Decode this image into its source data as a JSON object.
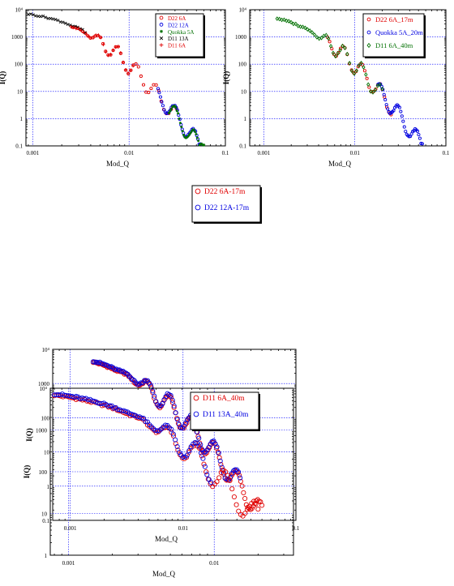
{
  "chart_data": [
    {
      "id": "c1",
      "type": "scatter",
      "xlabel": "Mod_Q",
      "ylabel": "I(Q)",
      "x_log": true,
      "y_log": true,
      "xlim": [
        0.00085,
        0.1
      ],
      "ylim": [
        0.1,
        10000
      ],
      "x_ticks": [
        {
          "v": 0.001,
          "t": "0.001"
        },
        {
          "v": 0.01,
          "t": "0.01"
        },
        {
          "v": 0.1,
          "t": "0.1"
        }
      ],
      "y_ticks": [
        {
          "v": 0.1,
          "t": "0.1"
        },
        {
          "v": 1,
          "t": "1"
        },
        {
          "v": 10,
          "t": "10"
        },
        {
          "v": 100,
          "t": "100"
        },
        {
          "v": 1000,
          "t": "1000"
        },
        {
          "v": 10000,
          "t": "10⁴"
        }
      ],
      "grid": true,
      "legend_position": "top-right",
      "series": [
        {
          "name": "D22 6A",
          "color": "#e00000",
          "marker": "circle",
          "q_range": [
            0.0026,
            0.031
          ],
          "n": 42
        },
        {
          "name": "D22 12A",
          "color": "#0000e0",
          "marker": "circle",
          "q_range": [
            0.02,
            0.055
          ],
          "n": 36
        },
        {
          "name": "Quokka 5A",
          "color": "#007000",
          "marker": "star",
          "q_range": [
            0.026,
            0.06
          ],
          "n": 32
        },
        {
          "name": "D11 13A",
          "color": "#000000",
          "marker": "cross",
          "q_range": [
            0.0009,
            0.0035
          ],
          "n": 24
        },
        {
          "name": "D11 6A",
          "color": "#e00000",
          "marker": "plus",
          "q_range": [
            0.0025,
            0.011
          ],
          "n": 26
        }
      ]
    },
    {
      "id": "c2",
      "type": "scatter",
      "xlabel": "Mod_Q",
      "ylabel": "I(Q)",
      "x_log": true,
      "y_log": true,
      "xlim": [
        0.0007,
        0.1
      ],
      "ylim": [
        0.1,
        10000
      ],
      "x_ticks": [
        {
          "v": 0.001,
          "t": "0.001"
        },
        {
          "v": 0.01,
          "t": "0.01"
        },
        {
          "v": 0.1,
          "t": "0.1"
        }
      ],
      "y_ticks": [
        {
          "v": 0.1,
          "t": "0.1"
        },
        {
          "v": 1,
          "t": "1"
        },
        {
          "v": 10,
          "t": "10"
        },
        {
          "v": 100,
          "t": "100"
        },
        {
          "v": 1000,
          "t": "1000"
        },
        {
          "v": 10000,
          "t": "10⁴"
        }
      ],
      "grid": true,
      "legend_position": "top-right",
      "series": [
        {
          "name": "D22 6A_17m",
          "color": "#e00000",
          "marker": "circle",
          "q_range": [
            0.005,
            0.025
          ],
          "n": 30
        },
        {
          "name": "Quokka 5A_20m",
          "color": "#0000e0",
          "marker": "circle",
          "q_range": [
            0.018,
            0.055
          ],
          "n": 38
        },
        {
          "name": "D11 6A_40m",
          "color": "#007000",
          "marker": "diamond",
          "q_range": [
            0.0014,
            0.02
          ],
          "n": 46
        }
      ]
    },
    {
      "id": "c3",
      "type": "scatter",
      "xlabel": "Mod_Q",
      "ylabel": "I(Q)",
      "x_log": true,
      "y_log": true,
      "xlim": [
        0.0007,
        0.1
      ],
      "ylim": [
        0.1,
        10000
      ],
      "x_ticks": [
        {
          "v": 0.001,
          "t": "0.001"
        },
        {
          "v": 0.01,
          "t": "0.01"
        },
        {
          "v": 0.1,
          "t": "0.1"
        }
      ],
      "y_ticks": [
        {
          "v": 0.1,
          "t": "0.1"
        },
        {
          "v": 1,
          "t": "1"
        },
        {
          "v": 10,
          "t": "10"
        },
        {
          "v": 100,
          "t": "100"
        },
        {
          "v": 1000,
          "t": "1000"
        },
        {
          "v": 10000,
          "t": "10⁴"
        }
      ],
      "grid": true,
      "legend_position": "top-right",
      "series": [
        {
          "name": "D22 6A-17m",
          "color": "#e00000",
          "marker": "circle",
          "q_range": [
            0.0016,
            0.05
          ],
          "n": 120
        },
        {
          "name": "D22 12A-17m",
          "color": "#0000e0",
          "marker": "circle",
          "q_range": [
            0.0016,
            0.032
          ],
          "n": 90
        }
      ]
    },
    {
      "id": "c4",
      "type": "scatter",
      "xlabel": "Mod_Q",
      "ylabel": "I(Q)",
      "x_log": true,
      "y_log": true,
      "xlim": [
        0.00075,
        0.035
      ],
      "ylim": [
        1,
        10000
      ],
      "x_ticks": [
        {
          "v": 0.001,
          "t": "0.001"
        },
        {
          "v": 0.01,
          "t": "0.01"
        }
      ],
      "y_ticks": [
        {
          "v": 1,
          "t": "1"
        },
        {
          "v": 10,
          "t": "10"
        },
        {
          "v": 100,
          "t": "100"
        },
        {
          "v": 1000,
          "t": "1000"
        },
        {
          "v": 10000,
          "t": "10⁴"
        }
      ],
      "grid": true,
      "legend_position": "top-right",
      "series": [
        {
          "name": "D11 6A_40m",
          "color": "#e00000",
          "marker": "circle",
          "q_range": [
            0.0008,
            0.02
          ],
          "n": 95
        },
        {
          "name": "D11 13A_40m",
          "color": "#0000e0",
          "marker": "circle",
          "q_range": [
            0.0008,
            0.0095
          ],
          "n": 80
        }
      ]
    }
  ]
}
